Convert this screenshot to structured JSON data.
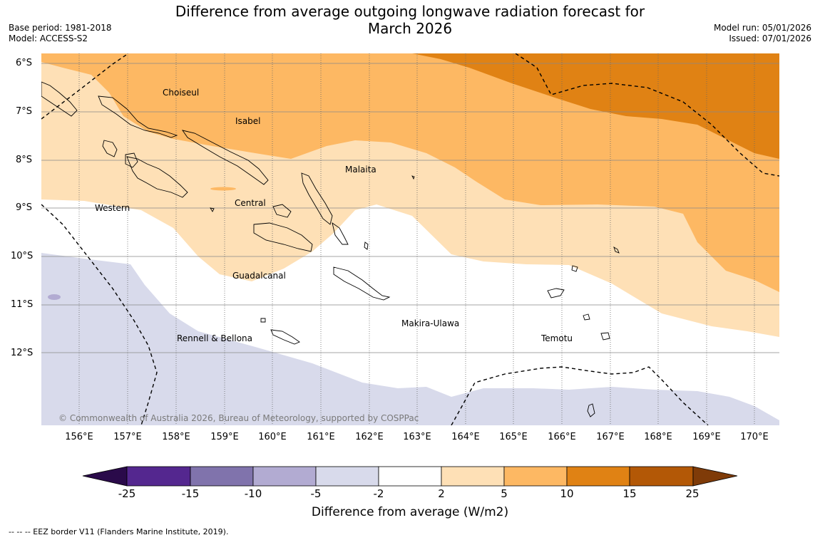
{
  "header": {
    "title_line1": "Difference from average outgoing longwave radiation forecast for",
    "title_line2": "March 2026",
    "base_period": "Base period: 1981-2018",
    "model": "Model: ACCESS-S2",
    "model_run": "Model run: 05/01/2026",
    "issued": "Issued: 07/01/2026"
  },
  "map": {
    "lat_labels": [
      "6°S",
      "7°S",
      "8°S",
      "9°S",
      "10°S",
      "11°S",
      "12°S"
    ],
    "lon_labels": [
      "156°E",
      "157°E",
      "158°E",
      "159°E",
      "160°E",
      "161°E",
      "162°E",
      "163°E",
      "164°E",
      "165°E",
      "166°E",
      "167°E",
      "168°E",
      "169°E",
      "170°E"
    ],
    "places": {
      "choiseul": "Choiseul",
      "isabel": "Isabel",
      "malaita": "Malaita",
      "western": "Western",
      "central": "Central",
      "guadalcanal": "Guadalcanal",
      "makira": "Makira-Ulawa",
      "temotu": "Temotu",
      "rennell": "Rennell & Bellona"
    },
    "copyright": "© Commonwealth of Australia 2026, Bureau of Meteorology, supported by COSPPac"
  },
  "colorbar": {
    "title": "Difference from average (W/m2)",
    "ticks": [
      "-25",
      "-15",
      "-10",
      "-5",
      "-2",
      "2",
      "5",
      "10",
      "15",
      "25"
    ],
    "colors": {
      "below_min": "#2a0a4a",
      "neg_25_15": "#54278f",
      "neg_15_10": "#8073ac",
      "neg_10_5": "#b2abd2",
      "neg_5_2": "#d8daeb",
      "neutral": "#ffffff",
      "pos_2_5": "#fee0b6",
      "pos_5_10": "#fdb863",
      "pos_10_15": "#e08214",
      "pos_15_25": "#b35806",
      "above_max": "#7f3b08"
    }
  },
  "footnote": "--  --  -- EEZ border V11 (Flanders Marine Institute, 2019)."
}
